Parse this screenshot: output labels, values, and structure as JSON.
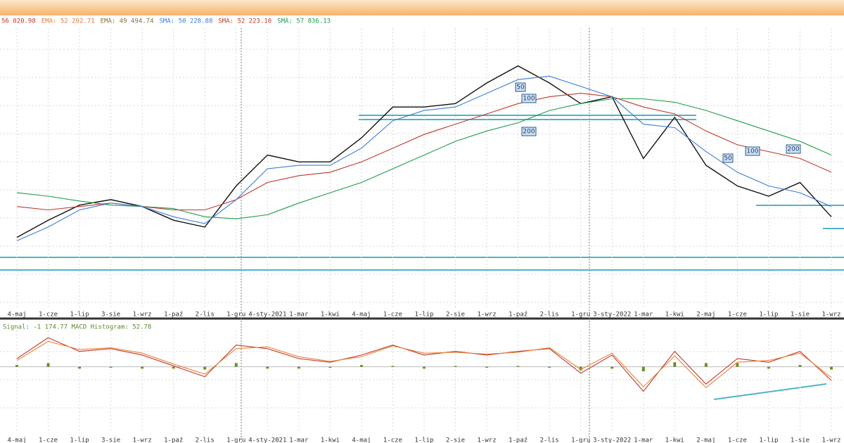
{
  "chart_data": [
    {
      "type": "line",
      "legend": [
        {
          "text": "56 020.98",
          "color": "#c0392b"
        },
        {
          "text": "EMA: 52 202.71",
          "color": "#e07b39"
        },
        {
          "text": "EMA: 49 494.74",
          "color": "#8a6d3b"
        },
        {
          "text": "SMA: 50 228.88",
          "color": "#3b7dd8"
        },
        {
          "text": "SMA: 52 223.10",
          "color": "#c0392b"
        },
        {
          "text": "SMA: 57 836.13",
          "color": "#1e9e4a"
        }
      ],
      "annotations": [
        "50",
        "100",
        "200",
        "50",
        "100",
        "200"
      ],
      "categories": [
        "4-maj",
        "1-cze",
        "1-lip",
        "3-sie",
        "1-wrz",
        "1-paź",
        "2-lis",
        "1-gru",
        "4-sty-2021",
        "1-mar",
        "1-kwi",
        "4-maj",
        "1-cze",
        "1-lip",
        "2-sie",
        "1-wrz",
        "1-paź",
        "2-lis",
        "1-gru",
        "3-sty-2022",
        "1-mar",
        "1-kwi",
        "2-maj",
        "1-cze",
        "1-lip",
        "1-sie",
        "1-wrz"
      ],
      "ylim": [
        34000,
        75000
      ],
      "series": [
        {
          "color": "#111111",
          "values": [
            44500,
            47000,
            49200,
            50000,
            49000,
            47000,
            46000,
            52000,
            56500,
            55500,
            55500,
            59000,
            63500,
            63500,
            64000,
            67000,
            69500,
            67000,
            64000,
            65000,
            56000,
            62000,
            55000,
            52000,
            50500,
            52500,
            47500
          ]
        },
        {
          "color": "#1e9e4a",
          "values": [
            51000,
            50500,
            49800,
            49200,
            49000,
            48700,
            47500,
            47200,
            47800,
            49500,
            51000,
            52500,
            54500,
            56500,
            58500,
            60000,
            61200,
            63000,
            64000,
            64700,
            64700,
            64200,
            63000,
            61500,
            60000,
            58500,
            56500
          ]
        },
        {
          "color": "#c0392b",
          "values": [
            49000,
            48500,
            49000,
            49500,
            49000,
            48500,
            48500,
            50000,
            52500,
            53500,
            54000,
            55500,
            57500,
            59500,
            61000,
            62500,
            64000,
            65000,
            65500,
            65000,
            63500,
            62500,
            60000,
            58000,
            57000,
            56000,
            54000
          ]
        },
        {
          "color": "#3b7dd8",
          "values": [
            44000,
            46000,
            48500,
            49500,
            49000,
            47500,
            46500,
            50000,
            54500,
            55000,
            55000,
            57500,
            61500,
            63000,
            63500,
            65500,
            67500,
            68000,
            66500,
            65000,
            61000,
            60500,
            57000,
            54000,
            52000,
            51000,
            49000
          ]
        }
      ]
    },
    {
      "type": "line",
      "legend": "Signal: -1 174.77 MACD Histogram: 52.78",
      "categories": [
        "4-maj",
        "1-cze",
        "1-lip",
        "3-sie",
        "1-wrz",
        "1-paź",
        "2-lis",
        "1-gru",
        "4-sty-2021",
        "1-mar",
        "1-kwi",
        "4-maj",
        "1-cze",
        "1-lip",
        "2-sie",
        "1-wrz",
        "1-paź",
        "2-lis",
        "1-gru",
        "3-sty-2022",
        "1-mar",
        "1-kwi",
        "2-maj",
        "1-cze",
        "1-lip",
        "1-sie",
        "1-wrz"
      ],
      "ylim": [
        -7000,
        4000
      ],
      "series": [
        {
          "color": "#c0392b",
          "values": [
            900,
            3200,
            1700,
            2000,
            1300,
            100,
            -1100,
            2400,
            2000,
            900,
            500,
            1300,
            2400,
            1300,
            1700,
            1300,
            1700,
            2000,
            -700,
            1300,
            -2700,
            1700,
            -1900,
            900,
            500,
            1700,
            -1500
          ]
        },
        {
          "color": "#e8833a",
          "values": [
            700,
            2800,
            1900,
            2100,
            1500,
            300,
            -800,
            2000,
            2200,
            1100,
            600,
            1100,
            2300,
            1500,
            1600,
            1400,
            1600,
            2100,
            -300,
            1500,
            -2200,
            1200,
            -2300,
            500,
            700,
            1500,
            -1200
          ]
        }
      ],
      "histogram": {
        "color": "#6b8e23",
        "values": [
          200,
          400,
          -200,
          -100,
          -200,
          -200,
          -300,
          400,
          -200,
          -200,
          -100,
          200,
          100,
          -200,
          100,
          -100,
          100,
          -100,
          -400,
          -200,
          -500,
          500,
          400,
          400,
          -200,
          200,
          -300
        ]
      }
    }
  ]
}
